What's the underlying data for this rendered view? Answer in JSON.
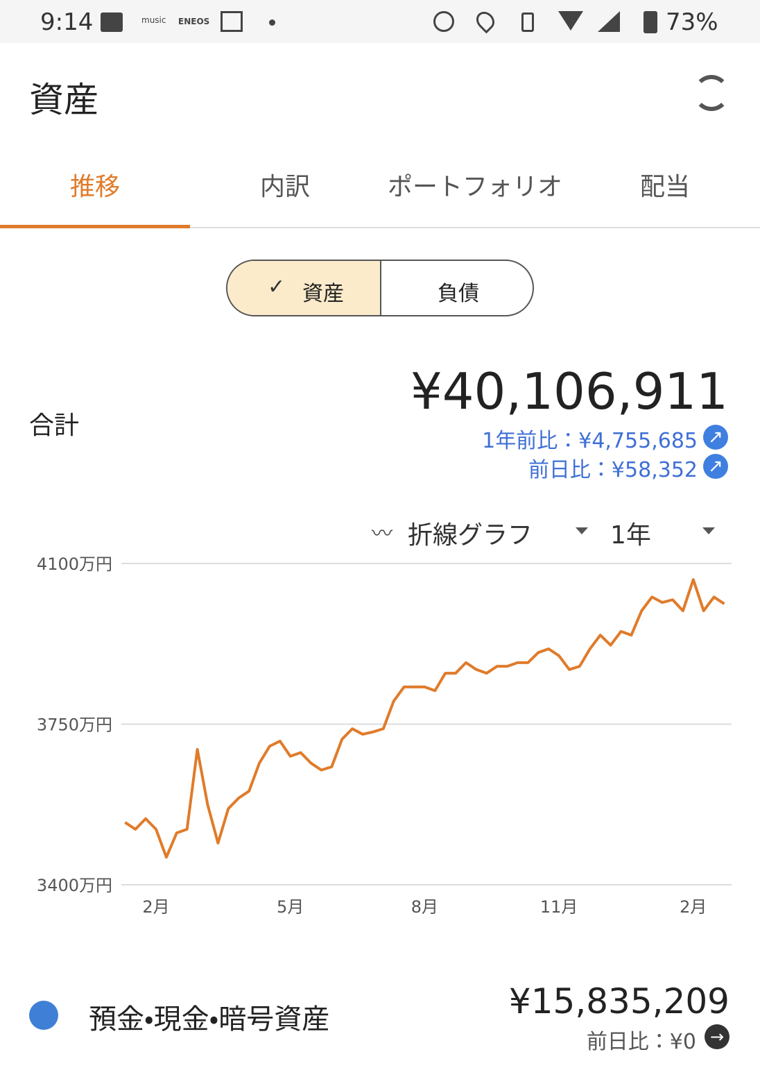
{
  "status_bar": {
    "time": "9:14",
    "icons": [
      "music",
      "ENEOS"
    ],
    "battery": "73%"
  },
  "header": {
    "title": "資産"
  },
  "tabs": [
    "推移",
    "内訳",
    "ポートフォリオ",
    "配当"
  ],
  "toggle": [
    "資産",
    "負債"
  ],
  "summary": {
    "label": "合計",
    "total": "¥40,106,911",
    "year_change": "1年前比：¥4,755,685",
    "day_change": "前日比：¥58,352"
  },
  "controls": {
    "chart_kind": "折線グラフ",
    "period": "1年"
  },
  "chart_data": {
    "type": "line",
    "categories": [
      null,
      null,
      null,
      "2月",
      null,
      null,
      null,
      null,
      null,
      null,
      null,
      null,
      null,
      null,
      null,
      null,
      "5月",
      null,
      null,
      null,
      null,
      null,
      null,
      null,
      null,
      null,
      null,
      null,
      null,
      "8月",
      null,
      null,
      null,
      null,
      null,
      null,
      null,
      null,
      null,
      null,
      null,
      null,
      "11月",
      null,
      null,
      null,
      null,
      null,
      null,
      null,
      null,
      null,
      null,
      null,
      null,
      "2月",
      null,
      null,
      null
    ],
    "series": [
      {
        "name": "資産",
        "color": "#e07b2a",
        "values": [
          3536,
          3521,
          3544,
          3521,
          3460,
          3513,
          3521,
          3695,
          3574,
          3491,
          3566,
          3589,
          3604,
          3665,
          3702,
          3713,
          3680,
          3688,
          3665,
          3650,
          3657,
          3717,
          3740,
          3728,
          3733,
          3740,
          3800,
          3831,
          3831,
          3831,
          3823,
          3861,
          3861,
          3884,
          3869,
          3861,
          3876,
          3876,
          3884,
          3884,
          3906,
          3914,
          3899,
          3869,
          3876,
          3914,
          3944,
          3922,
          3952,
          3944,
          3997,
          4027,
          4015,
          4021,
          3997,
          4065,
          3997,
          4027,
          4012
        ]
      }
    ],
    "ylim": [
      3400,
      4100
    ],
    "yticks": [
      {
        "value": 3400,
        "label": "3400万円"
      },
      {
        "value": 3750,
        "label": "3750万円"
      },
      {
        "value": 4100,
        "label": "4100万円"
      }
    ],
    "grid": true
  },
  "items": [
    {
      "name": "預金・現金・暗号資産",
      "color": "#3f7fd6",
      "amount": "¥15,835,209",
      "day_change": "前日比：¥0"
    }
  ]
}
